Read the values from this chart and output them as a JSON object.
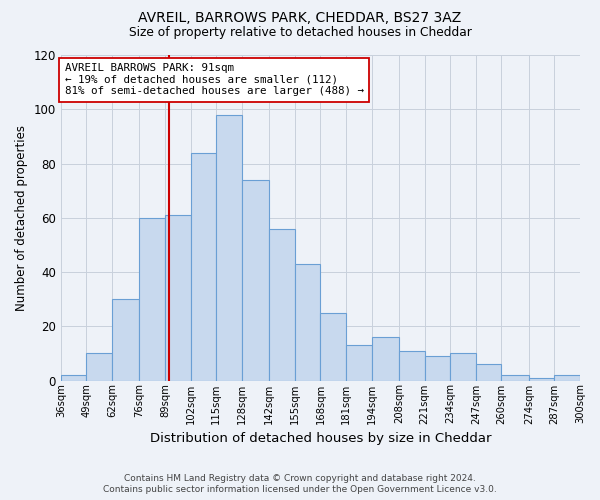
{
  "title": "AVREIL, BARROWS PARK, CHEDDAR, BS27 3AZ",
  "subtitle": "Size of property relative to detached houses in Cheddar",
  "xlabel": "Distribution of detached houses by size in Cheddar",
  "ylabel": "Number of detached properties",
  "bar_edges": [
    36,
    49,
    62,
    76,
    89,
    102,
    115,
    128,
    142,
    155,
    168,
    181,
    194,
    208,
    221,
    234,
    247,
    260,
    274,
    287,
    300
  ],
  "bar_heights": [
    2,
    10,
    30,
    60,
    61,
    84,
    98,
    74,
    56,
    43,
    25,
    13,
    16,
    11,
    9,
    10,
    6,
    2,
    1,
    2
  ],
  "bar_color": "#c8d9ee",
  "bar_edge_color": "#6a9fd4",
  "vline_x": 91,
  "vline_color": "#cc0000",
  "annotation_title": "AVREIL BARROWS PARK: 91sqm",
  "annotation_line1": "← 19% of detached houses are smaller (112)",
  "annotation_line2": "81% of semi-detached houses are larger (488) →",
  "ylim": [
    0,
    120
  ],
  "yticks": [
    0,
    20,
    40,
    60,
    80,
    100,
    120
  ],
  "tick_labels": [
    "36sqm",
    "49sqm",
    "62sqm",
    "76sqm",
    "89sqm",
    "102sqm",
    "115sqm",
    "128sqm",
    "142sqm",
    "155sqm",
    "168sqm",
    "181sqm",
    "194sqm",
    "208sqm",
    "221sqm",
    "234sqm",
    "247sqm",
    "260sqm",
    "274sqm",
    "287sqm",
    "300sqm"
  ],
  "footer_line1": "Contains HM Land Registry data © Crown copyright and database right 2024.",
  "footer_line2": "Contains public sector information licensed under the Open Government Licence v3.0.",
  "bg_color": "#eef2f8",
  "plot_bg_color": "#eef2f8",
  "grid_color": "#c8d0dc"
}
